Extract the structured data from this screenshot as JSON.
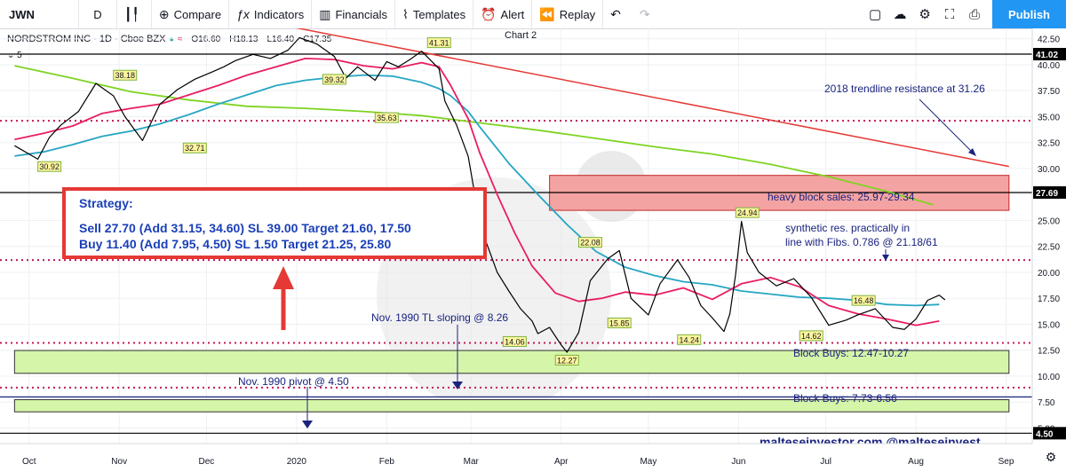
{
  "toolbar": {
    "symbol": "JWN",
    "interval": "D",
    "compare": "Compare",
    "indicators": "Indicators",
    "financials": "Financials",
    "templates": "Templates",
    "alert": "Alert",
    "replay": "Replay",
    "publish": "Publish"
  },
  "legend": {
    "title": "NORDSTROM INC · 1D · Cboe BZX",
    "open": "O16.60",
    "high": "H18.13",
    "low": "L16.40",
    "close": "C17.35",
    "badge": "5",
    "chart_name": "Chart 2"
  },
  "chart_data": {
    "type": "line",
    "title": "NORDSTROM INC · 1D · Cboe BZX",
    "ylim": [
      3.5,
      43.5
    ],
    "y_ticks": [
      42.5,
      40.0,
      37.5,
      35.0,
      32.5,
      30.0,
      27.5,
      25.0,
      22.5,
      20.0,
      17.5,
      15.0,
      12.5,
      10.0,
      7.5,
      5.0
    ],
    "y_tick_labels": [
      "42.50",
      "40.00",
      "37.50",
      "35.00",
      "32.50",
      "30.00",
      "27.50",
      "25.00",
      "22.50",
      "20.00",
      "17.50",
      "15.00",
      "12.50",
      "10.00",
      "7.50",
      "5.00"
    ],
    "x_tick_labels": [
      "Oct",
      "Nov",
      "Dec",
      "2020",
      "Feb",
      "Mar",
      "Apr",
      "May",
      "Jun",
      "Jul",
      "Aug",
      "Sep"
    ],
    "x_tick_days": [
      5,
      36,
      66,
      97,
      128,
      157,
      188,
      218,
      249,
      279,
      310,
      341
    ],
    "grid": true,
    "price_badges": [
      {
        "value": 41.02,
        "label": "41.02",
        "color": "#000000"
      },
      {
        "value": 27.69,
        "label": "27.69",
        "color": "#000000"
      },
      {
        "value": 4.5,
        "label": "4.50",
        "color": "#000000"
      }
    ],
    "series": [
      {
        "name": "Price",
        "color": "#000000",
        "x": [
          0,
          8,
          12,
          16,
          22,
          28,
          34,
          38,
          44,
          50,
          56,
          62,
          68,
          72,
          76,
          82,
          88,
          94,
          98,
          104,
          110,
          114,
          118,
          124,
          128,
          132,
          136,
          140,
          146,
          148,
          152,
          156,
          158,
          160,
          163,
          166,
          170,
          174,
          178,
          180,
          184,
          188,
          190,
          194,
          198,
          204,
          208,
          212,
          218,
          222,
          228,
          232,
          236,
          240,
          244,
          246,
          248,
          250,
          252,
          256,
          262,
          268,
          274,
          280,
          286,
          290,
          296,
          302,
          306,
          310,
          314,
          318,
          320
        ],
        "y": [
          32.2,
          30.9,
          33.0,
          34.2,
          35.5,
          38.2,
          37.0,
          35.0,
          32.7,
          36.2,
          37.6,
          38.6,
          39.3,
          39.8,
          40.4,
          41.0,
          40.6,
          41.4,
          42.6,
          42.0,
          40.8,
          38.7,
          39.8,
          38.5,
          40.3,
          39.8,
          40.5,
          41.3,
          39.6,
          36.5,
          34.2,
          31.2,
          28.0,
          24.5,
          22.3,
          20.0,
          18.2,
          16.5,
          15.3,
          14.1,
          14.7,
          13.0,
          12.3,
          14.2,
          19.2,
          21.3,
          22.1,
          17.5,
          15.9,
          18.9,
          21.2,
          19.5,
          16.8,
          15.6,
          14.3,
          16.0,
          19.8,
          24.9,
          21.9,
          20.0,
          18.7,
          19.4,
          17.6,
          14.9,
          15.4,
          15.9,
          16.5,
          14.7,
          14.5,
          15.5,
          17.3,
          17.8,
          17.35
        ]
      },
      {
        "name": "MA short",
        "color": "#e91e63",
        "x": [
          0,
          10,
          20,
          30,
          40,
          50,
          60,
          70,
          80,
          90,
          100,
          110,
          120,
          130,
          140,
          146,
          150,
          156,
          160,
          166,
          172,
          178,
          186,
          194,
          202,
          210,
          220,
          230,
          240,
          250,
          260,
          270,
          280,
          290,
          300,
          310,
          318
        ],
        "y": [
          32.8,
          33.4,
          34.1,
          35.3,
          35.8,
          36.2,
          37.1,
          38.0,
          39.0,
          39.8,
          40.6,
          40.5,
          39.9,
          39.6,
          40.2,
          39.8,
          38.0,
          34.8,
          31.5,
          27.5,
          23.8,
          20.6,
          18.0,
          17.2,
          17.5,
          18.1,
          17.8,
          18.5,
          17.4,
          18.9,
          19.5,
          18.6,
          16.8,
          16.0,
          15.5,
          14.9,
          15.3
        ]
      },
      {
        "name": "MA mid",
        "color": "#26a6c2",
        "x": [
          0,
          10,
          20,
          30,
          40,
          50,
          60,
          70,
          80,
          90,
          100,
          110,
          120,
          130,
          140,
          146,
          150,
          156,
          160,
          170,
          180,
          190,
          200,
          210,
          220,
          230,
          240,
          250,
          260,
          270,
          280,
          290,
          300,
          310,
          318
        ],
        "y": [
          31.2,
          31.6,
          32.3,
          33.1,
          33.6,
          34.3,
          35.2,
          36.2,
          37.1,
          38.0,
          38.5,
          38.8,
          39.0,
          38.9,
          38.3,
          37.7,
          37.0,
          35.5,
          34.0,
          30.5,
          27.5,
          24.6,
          22.0,
          20.5,
          19.7,
          19.1,
          18.8,
          18.2,
          17.9,
          17.6,
          17.5,
          17.3,
          16.9,
          16.8,
          16.9
        ]
      },
      {
        "name": "MA long",
        "color": "#7ed321",
        "x": [
          0,
          20,
          40,
          60,
          80,
          100,
          120,
          140,
          160,
          180,
          200,
          220,
          240,
          260,
          280,
          300,
          316
        ],
        "y": [
          39.9,
          38.7,
          37.4,
          36.6,
          36.0,
          35.8,
          35.5,
          35.1,
          34.4,
          33.7,
          32.9,
          32.1,
          31.4,
          30.4,
          29.2,
          27.8,
          26.5
        ]
      }
    ],
    "trendlines": [
      {
        "name": "2018 trendline",
        "color": "#e53935",
        "x": [
          96,
          342
        ],
        "y": [
          43.6,
          30.2
        ]
      }
    ],
    "horizontal_lines": [
      {
        "value": 41.02,
        "color": "#000000",
        "style": "solid"
      },
      {
        "value": 34.6,
        "color": "#c2185b",
        "style": "dotted"
      },
      {
        "value": 27.69,
        "color": "#000000",
        "style": "solid"
      },
      {
        "value": 21.18,
        "color": "#c2185b",
        "style": "dotted"
      },
      {
        "value": 13.2,
        "color": "#c2185b",
        "style": "dotted"
      },
      {
        "value": 8.9,
        "color": "#c2185b",
        "style": "dotted"
      },
      {
        "value": 8.0,
        "color": "#1a237e",
        "style": "solid"
      },
      {
        "value": 4.5,
        "color": "#000000",
        "style": "solid"
      }
    ],
    "zones": [
      {
        "label": "heavy block sales: 25.97-29.34",
        "low": 25.97,
        "high": 29.34,
        "x0": 184,
        "x1": 342,
        "fill": "#f4a3a3",
        "stroke": "#c62828"
      },
      {
        "label": "Block Buys: 12.47-10.27",
        "low": 10.27,
        "high": 12.47,
        "x0": 0,
        "x1": 342,
        "fill": "#d5f5a8",
        "stroke": "#333333"
      },
      {
        "label": "Block Buys: 7.73-6.56",
        "low": 6.56,
        "high": 7.73,
        "x0": 0,
        "x1": 342,
        "fill": "#d5f5a8",
        "stroke": "#333333"
      }
    ],
    "point_labels": [
      {
        "x": 12,
        "y": 30.92,
        "label": "30.92",
        "pos": "below"
      },
      {
        "x": 38,
        "y": 38.18,
        "label": "38.18",
        "pos": "above"
      },
      {
        "x": 62,
        "y": 32.71,
        "label": "32.71",
        "pos": "below"
      },
      {
        "x": 110,
        "y": 39.32,
        "label": "39.32",
        "pos": "below"
      },
      {
        "x": 128,
        "y": 35.63,
        "label": "35.63",
        "pos": "below"
      },
      {
        "x": 146,
        "y": 41.31,
        "label": "41.31",
        "pos": "above"
      },
      {
        "x": 172,
        "y": 14.06,
        "label": "14.06",
        "pos": "below"
      },
      {
        "x": 190,
        "y": 12.27,
        "label": "12.27",
        "pos": "below"
      },
      {
        "x": 198,
        "y": 22.08,
        "label": "22.08",
        "pos": "above"
      },
      {
        "x": 208,
        "y": 15.85,
        "label": "15.85",
        "pos": "below"
      },
      {
        "x": 232,
        "y": 14.24,
        "label": "14.24",
        "pos": "below"
      },
      {
        "x": 252,
        "y": 24.94,
        "label": "24.94",
        "pos": "above"
      },
      {
        "x": 274,
        "y": 14.62,
        "label": "14.62",
        "pos": "below"
      },
      {
        "x": 292,
        "y": 16.48,
        "label": "16.48",
        "pos": "above"
      }
    ],
    "annotations": {
      "trendline": "2018 trendline resistance at 31.26",
      "heavy_block": "heavy block sales: 25.97-29.34",
      "synthetic_line1": "synthetic res. practically in",
      "synthetic_line2": "line with Fibs. 0.786 @ 21.18/61",
      "tl_1990": "Nov. 1990 TL sloping @ 8.26",
      "pivot_1990": "Nov. 1990 pivot @ 4.50",
      "block_buys_1": "Block Buys: 12.47-10.27",
      "block_buys_2": "Block Buys: 7.73-6.56",
      "strategy_title": "Strategy:",
      "strategy_sell": "Sell 27.70 (Add 31.15, 34.60) SL 39.00 Target 21.60, 17.50",
      "strategy_buy": "Buy 11.40 (Add 7.95, 4.50) SL 1.50 Target 21.25, 25.80",
      "watermark": "malteseinvestor.com @malteseinvest"
    }
  }
}
